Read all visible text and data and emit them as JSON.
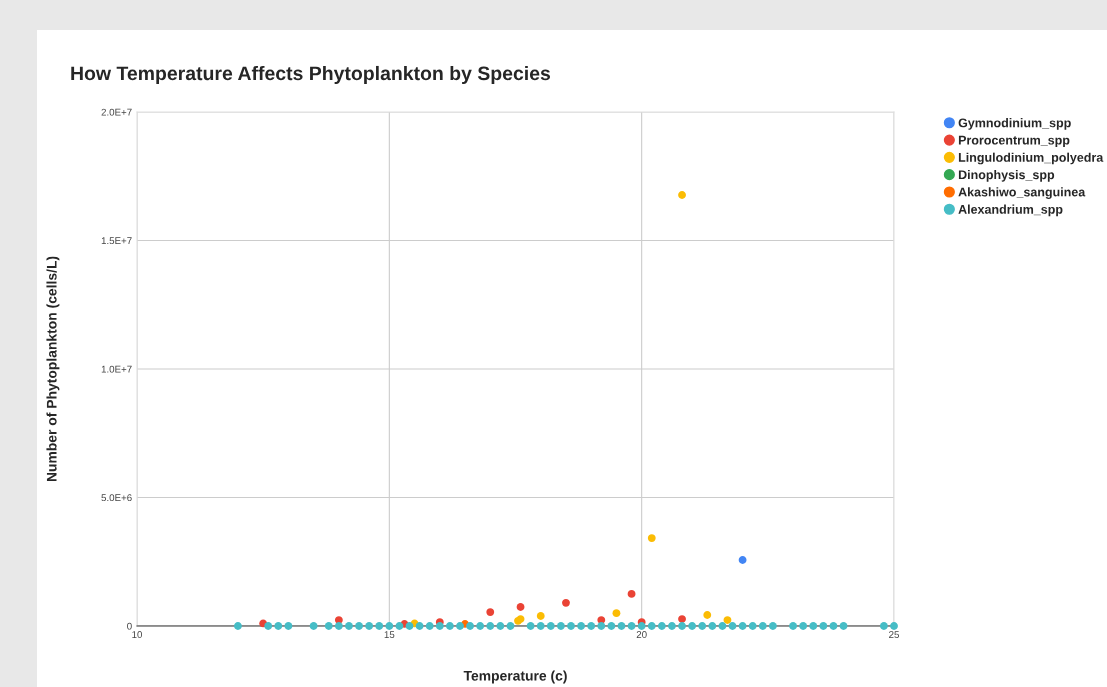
{
  "chart_data": {
    "type": "scatter",
    "title": "How Temperature Affects Phytoplankton by Species",
    "xlabel": "Temperature (c)",
    "ylabel": "Number of Phytoplankton (cells/L)",
    "xlim": [
      10,
      25
    ],
    "xticks": [
      10,
      15,
      20,
      25
    ],
    "ylim": [
      0,
      20000000
    ],
    "yticks": [
      {
        "value": 0,
        "label": "0"
      },
      {
        "value": 5000000,
        "label": "5.0E+6"
      },
      {
        "value": 10000000,
        "label": "1.0E+7"
      },
      {
        "value": 15000000,
        "label": "1.5E+7"
      },
      {
        "value": 20000000,
        "label": "2.0E+7"
      }
    ],
    "grid": true,
    "legend": "right",
    "marker": "circle",
    "series": [
      {
        "name": "Gymnodinium_spp",
        "color": "#4285f4",
        "x": [
          22.0
        ],
        "values": [
          2570000
        ]
      },
      {
        "name": "Prorocentrum_spp",
        "color": "#ea4335",
        "x": [
          12.5,
          14.0,
          15.3,
          16.0,
          17.0,
          17.6,
          18.5,
          19.0,
          19.2,
          19.8,
          20.0,
          20.8
        ],
        "values": [
          100000,
          230000,
          80000,
          150000,
          540000,
          740000,
          900000,
          null,
          230000,
          1250000,
          150000,
          270000
        ]
      },
      {
        "name": "Lingulodinium_polyedra",
        "color": "#fbbc04",
        "x": [
          15.5,
          17.0,
          17.55,
          17.6,
          18.0,
          19.5,
          20.2,
          20.8,
          21.3,
          21.7
        ],
        "values": [
          100000,
          null,
          200000,
          270000,
          390000,
          500000,
          3420000,
          16770000,
          430000,
          230000
        ]
      },
      {
        "name": "Dinophysis_spp",
        "color": "#34a853"
      },
      {
        "name": "Akashiwo_sanguinea",
        "color": "#ff6d01",
        "x": [
          16.5
        ],
        "values": [
          80000
        ]
      },
      {
        "name": "Alexandrium_spp",
        "color": "#46bdc6",
        "x": [
          12.0,
          12.6,
          12.8,
          13.0,
          13.5,
          13.8,
          14.0,
          14.2,
          14.4,
          14.6,
          14.8,
          15.0,
          15.2,
          15.4,
          15.6,
          15.8,
          16.0,
          16.2,
          16.4,
          16.6,
          16.8,
          17.0,
          17.2,
          17.4,
          17.8,
          18.0,
          18.2,
          18.4,
          18.6,
          18.8,
          19.0,
          19.2,
          19.4,
          19.6,
          19.8,
          20.0,
          20.2,
          20.4,
          20.6,
          20.8,
          21.0,
          21.2,
          21.4,
          21.6,
          21.8,
          22.0,
          22.2,
          22.4,
          22.6,
          23.0,
          23.2,
          23.4,
          23.6,
          23.8,
          24.0,
          24.8,
          25.0
        ],
        "values": [
          0,
          0,
          0,
          0,
          0,
          0,
          0,
          0,
          0,
          0,
          0,
          0,
          0,
          0,
          0,
          0,
          0,
          0,
          0,
          0,
          0,
          0,
          0,
          0,
          0,
          0,
          0,
          0,
          0,
          0,
          0,
          0,
          0,
          0,
          0,
          0,
          0,
          0,
          0,
          0,
          0,
          0,
          0,
          0,
          0,
          0,
          0,
          0,
          0,
          0,
          0,
          0,
          0,
          0,
          0,
          0,
          0
        ]
      }
    ]
  }
}
